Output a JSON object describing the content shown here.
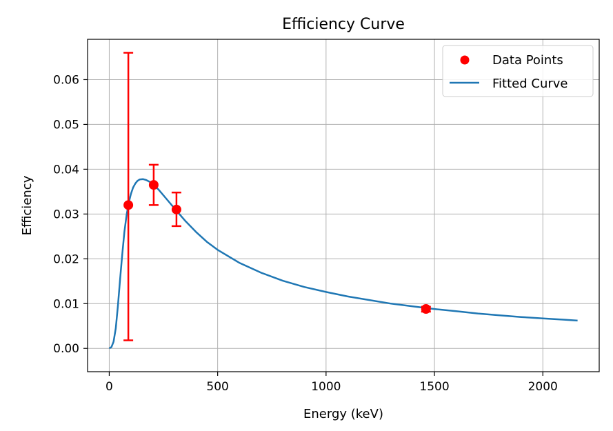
{
  "chart_data": {
    "type": "scatter",
    "title": "Efficiency Curve",
    "xlabel": "Energy (keV)",
    "ylabel": "Efficiency",
    "xlim": [
      -100,
      2260
    ],
    "ylim": [
      -0.0052,
      0.069
    ],
    "xticks": [
      0,
      500,
      1000,
      1500,
      2000
    ],
    "xtick_labels": [
      "0",
      "500",
      "1000",
      "1500",
      "2000"
    ],
    "yticks": [
      0.0,
      0.01,
      0.02,
      0.03,
      0.04,
      0.05,
      0.06
    ],
    "ytick_labels": [
      "0.00",
      "0.01",
      "0.02",
      "0.03",
      "0.04",
      "0.05",
      "0.06"
    ],
    "grid": true,
    "legend_position": "top-right",
    "series": [
      {
        "name": "Data Points",
        "kind": "scatter",
        "color": "#ff0000",
        "points": [
          {
            "x": 88,
            "y": 0.032,
            "err_low": 0.0018,
            "err_high": 0.066
          },
          {
            "x": 205,
            "y": 0.0365,
            "err_low": 0.032,
            "err_high": 0.041
          },
          {
            "x": 310,
            "y": 0.031,
            "err_low": 0.0273,
            "err_high": 0.0348
          },
          {
            "x": 1461,
            "y": 0.0088,
            "err_low": 0.0082,
            "err_high": 0.0093
          }
        ]
      },
      {
        "name": "Fitted Curve",
        "kind": "line",
        "color": "#1f77b4",
        "points": [
          {
            "x": 0,
            "y": 0.0
          },
          {
            "x": 10,
            "y": 0.0003
          },
          {
            "x": 20,
            "y": 0.0015
          },
          {
            "x": 30,
            "y": 0.0045
          },
          {
            "x": 40,
            "y": 0.0095
          },
          {
            "x": 50,
            "y": 0.0155
          },
          {
            "x": 60,
            "y": 0.021
          },
          {
            "x": 70,
            "y": 0.026
          },
          {
            "x": 80,
            "y": 0.0298
          },
          {
            "x": 90,
            "y": 0.0325
          },
          {
            "x": 100,
            "y": 0.0345
          },
          {
            "x": 110,
            "y": 0.0359
          },
          {
            "x": 120,
            "y": 0.0368
          },
          {
            "x": 130,
            "y": 0.0374
          },
          {
            "x": 140,
            "y": 0.0377
          },
          {
            "x": 155,
            "y": 0.0378
          },
          {
            "x": 170,
            "y": 0.0376
          },
          {
            "x": 190,
            "y": 0.0371
          },
          {
            "x": 210,
            "y": 0.0363
          },
          {
            "x": 230,
            "y": 0.0353
          },
          {
            "x": 260,
            "y": 0.0336
          },
          {
            "x": 300,
            "y": 0.0313
          },
          {
            "x": 350,
            "y": 0.0285
          },
          {
            "x": 400,
            "y": 0.026
          },
          {
            "x": 450,
            "y": 0.0238
          },
          {
            "x": 500,
            "y": 0.022
          },
          {
            "x": 600,
            "y": 0.0191
          },
          {
            "x": 700,
            "y": 0.0169
          },
          {
            "x": 800,
            "y": 0.0151
          },
          {
            "x": 900,
            "y": 0.0137
          },
          {
            "x": 1000,
            "y": 0.0126
          },
          {
            "x": 1100,
            "y": 0.0116
          },
          {
            "x": 1200,
            "y": 0.0108
          },
          {
            "x": 1300,
            "y": 0.01
          },
          {
            "x": 1400,
            "y": 0.0094
          },
          {
            "x": 1500,
            "y": 0.0088
          },
          {
            "x": 1600,
            "y": 0.0083
          },
          {
            "x": 1700,
            "y": 0.0078
          },
          {
            "x": 1800,
            "y": 0.0074
          },
          {
            "x": 1900,
            "y": 0.007
          },
          {
            "x": 2000,
            "y": 0.0067
          },
          {
            "x": 2100,
            "y": 0.0064
          },
          {
            "x": 2160,
            "y": 0.0062
          }
        ]
      }
    ]
  }
}
